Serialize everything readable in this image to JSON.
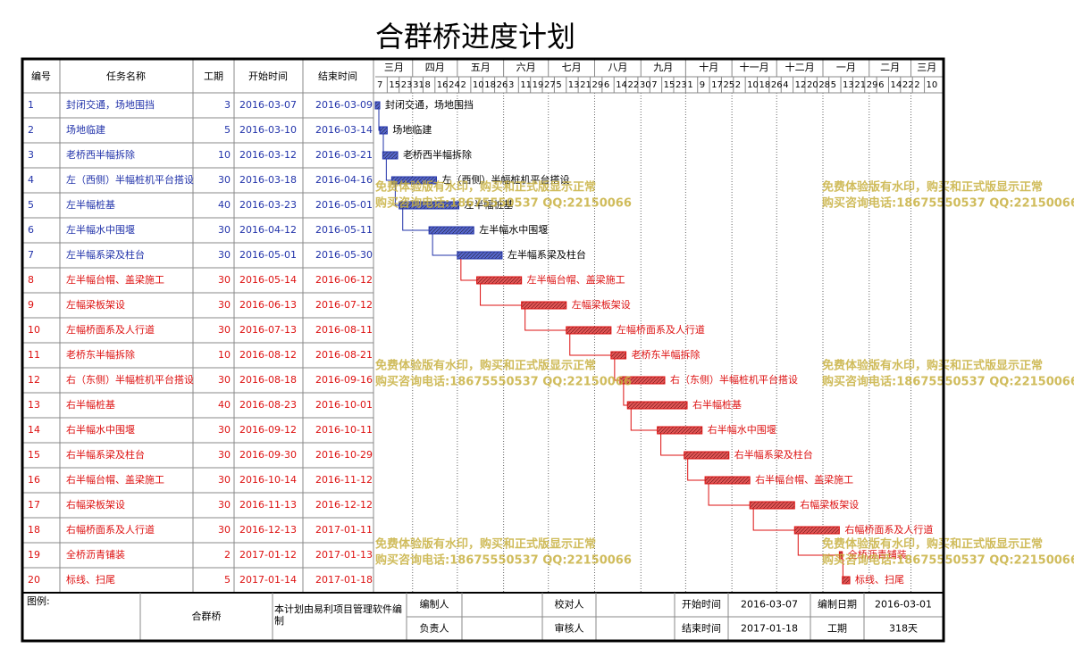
{
  "title": "合群桥进度计划",
  "header": {
    "id": "编号",
    "name": "任务名称",
    "duration": "工期",
    "start": "开始时间",
    "end": "结束时间"
  },
  "timeline": {
    "months": [
      "三月",
      "四月",
      "五月",
      "六月",
      "七月",
      "八月",
      "九月",
      "十月",
      "十一月",
      "十二月",
      "一月",
      "二月",
      "三月"
    ],
    "days": [
      7,
      15,
      23,
      31,
      8,
      16,
      24,
      2,
      10,
      18,
      26,
      3,
      11,
      19,
      27,
      5,
      13,
      21,
      29,
      6,
      14,
      22,
      30,
      7,
      15,
      23,
      1,
      9,
      17,
      25,
      2,
      10,
      18,
      26,
      4,
      12,
      20,
      28,
      5,
      13,
      21,
      29,
      6,
      14,
      22,
      2,
      10
    ]
  },
  "tasks": [
    {
      "id": 1,
      "name": "封闭交通，场地围挡",
      "duration": 3,
      "start": "2016-03-07",
      "end": "2016-03-09",
      "color": "#2233aa"
    },
    {
      "id": 2,
      "name": "场地临建",
      "duration": 5,
      "start": "2016-03-10",
      "end": "2016-03-14",
      "color": "#2233aa"
    },
    {
      "id": 3,
      "name": "老桥西半幅拆除",
      "duration": 10,
      "start": "2016-03-12",
      "end": "2016-03-21",
      "color": "#2233aa"
    },
    {
      "id": 4,
      "name": "左（西侧）半幅桩机平台搭设",
      "duration": 30,
      "start": "2016-03-18",
      "end": "2016-04-16",
      "color": "#2233aa"
    },
    {
      "id": 5,
      "name": "左半幅桩基",
      "duration": 40,
      "start": "2016-03-23",
      "end": "2016-05-01",
      "color": "#2233aa"
    },
    {
      "id": 6,
      "name": "左半幅水中围堰",
      "duration": 30,
      "start": "2016-04-12",
      "end": "2016-05-11",
      "color": "#2233aa"
    },
    {
      "id": 7,
      "name": "左半幅系梁及柱台",
      "duration": 30,
      "start": "2016-05-01",
      "end": "2016-05-30",
      "color": "#2233aa"
    },
    {
      "id": 8,
      "name": "左半幅台帽、盖梁施工",
      "duration": 30,
      "start": "2016-05-14",
      "end": "2016-06-12",
      "color": "#dd1111"
    },
    {
      "id": 9,
      "name": "左幅梁板架设",
      "duration": 30,
      "start": "2016-06-13",
      "end": "2016-07-12",
      "color": "#dd1111"
    },
    {
      "id": 10,
      "name": "左幅桥面系及人行道",
      "duration": 30,
      "start": "2016-07-13",
      "end": "2016-08-11",
      "color": "#dd1111"
    },
    {
      "id": 11,
      "name": "老桥东半幅拆除",
      "duration": 10,
      "start": "2016-08-12",
      "end": "2016-08-21",
      "color": "#dd1111"
    },
    {
      "id": 12,
      "name": "右（东侧）半幅桩机平台搭设",
      "duration": 30,
      "start": "2016-08-18",
      "end": "2016-09-16",
      "color": "#dd1111"
    },
    {
      "id": 13,
      "name": "右半幅桩基",
      "duration": 40,
      "start": "2016-08-23",
      "end": "2016-10-01",
      "color": "#dd1111"
    },
    {
      "id": 14,
      "name": "右半幅水中围堰",
      "duration": 30,
      "start": "2016-09-12",
      "end": "2016-10-11",
      "color": "#dd1111"
    },
    {
      "id": 15,
      "name": "右半幅系梁及柱台",
      "duration": 30,
      "start": "2016-09-30",
      "end": "2016-10-29",
      "color": "#dd1111"
    },
    {
      "id": 16,
      "name": "右半幅台帽、盖梁施工",
      "duration": 30,
      "start": "2016-10-14",
      "end": "2016-11-12",
      "color": "#dd1111"
    },
    {
      "id": 17,
      "name": "右幅梁板架设",
      "duration": 30,
      "start": "2016-11-13",
      "end": "2016-12-12",
      "color": "#dd1111"
    },
    {
      "id": 18,
      "name": "右幅桥面系及人行道",
      "duration": 30,
      "start": "2016-12-13",
      "end": "2017-01-11",
      "color": "#dd1111"
    },
    {
      "id": 19,
      "name": "全桥沥青铺装",
      "duration": 2,
      "start": "2017-01-12",
      "end": "2017-01-13",
      "color": "#dd1111"
    },
    {
      "id": 20,
      "name": "标线、扫尾",
      "duration": 5,
      "start": "2017-01-14",
      "end": "2017-01-18",
      "color": "#dd1111"
    }
  ],
  "footer": {
    "legend": "图例:",
    "project": "合群桥",
    "software": "本计划由易利项目管理软件编制",
    "compiler": "编制人",
    "reviewer": "校对人",
    "start_label": "开始时间",
    "start_date": "2016-03-07",
    "compile_date_label": "编制日期",
    "compile_date": "2016-03-01",
    "owner": "负责人",
    "auditor": "审核人",
    "end_label": "结束时间",
    "end_date": "2017-01-18",
    "duration_label": "工期",
    "duration": "318天"
  },
  "watermark": {
    "line1": "免费体验版有水印，购买和正式版显示正常",
    "line2": "购买咨询电话:18675550537 QQ:22150066"
  }
}
